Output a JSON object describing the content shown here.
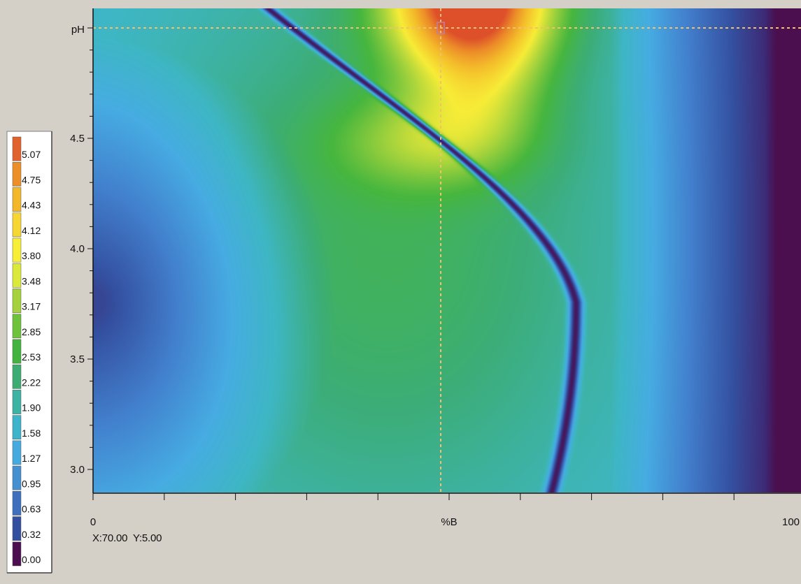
{
  "chart_data": {
    "type": "heatmap",
    "title": "",
    "xlabel": "%B",
    "ylabel": "pH",
    "xlim": [
      0,
      100
    ],
    "ylim": [
      2.9,
      5.2
    ],
    "x_tick_labels": [
      {
        "value": 0,
        "label": "0"
      },
      {
        "value": 100,
        "label": "100"
      }
    ],
    "x_minor_ticks": [
      0,
      10,
      20,
      30,
      40,
      50,
      60,
      70,
      80,
      90,
      100
    ],
    "y_tick_labels": [
      {
        "value": 3.0,
        "label": "3.0"
      },
      {
        "value": 3.5,
        "label": "3.5"
      },
      {
        "value": 4.0,
        "label": "4.0"
      },
      {
        "value": 4.5,
        "label": "4.5"
      }
    ],
    "y_minor_ticks": [
      3.0,
      3.1,
      3.2,
      3.3,
      3.4,
      3.5,
      3.6,
      3.7,
      3.8,
      3.9,
      4.0,
      4.1,
      4.2,
      4.3,
      4.4,
      4.5,
      4.6,
      4.7,
      4.8,
      4.9,
      5.0
    ],
    "colorbar": {
      "levels": [
        {
          "label": "5.07",
          "color": "#e1622f"
        },
        {
          "label": "4.75",
          "color": "#eb9028"
        },
        {
          "label": "4.43",
          "color": "#f3b72a"
        },
        {
          "label": "4.12",
          "color": "#f7d634"
        },
        {
          "label": "3.80",
          "color": "#f7ef37"
        },
        {
          "label": "3.48",
          "color": "#dbe93a"
        },
        {
          "label": "3.17",
          "color": "#a5d13c"
        },
        {
          "label": "2.85",
          "color": "#6ec23c"
        },
        {
          "label": "2.53",
          "color": "#43b33f"
        },
        {
          "label": "2.22",
          "color": "#3cac72"
        },
        {
          "label": "1.90",
          "color": "#3cb3a3"
        },
        {
          "label": "1.58",
          "color": "#3db4c9"
        },
        {
          "label": "1.27",
          "color": "#45abdf"
        },
        {
          "label": "0.95",
          "color": "#4590d0"
        },
        {
          "label": "0.63",
          "color": "#3f6fbd"
        },
        {
          "label": "0.32",
          "color": "#334f9e"
        },
        {
          "label": "0.00",
          "color": "#4b0f4f"
        }
      ]
    },
    "crosshair": {
      "x": 70,
      "y": 5.0,
      "color": "#f0c070"
    },
    "max_value": 5.07,
    "grid": false,
    "legend_position": "left"
  },
  "readout": "X:70.00  Y:5.00"
}
